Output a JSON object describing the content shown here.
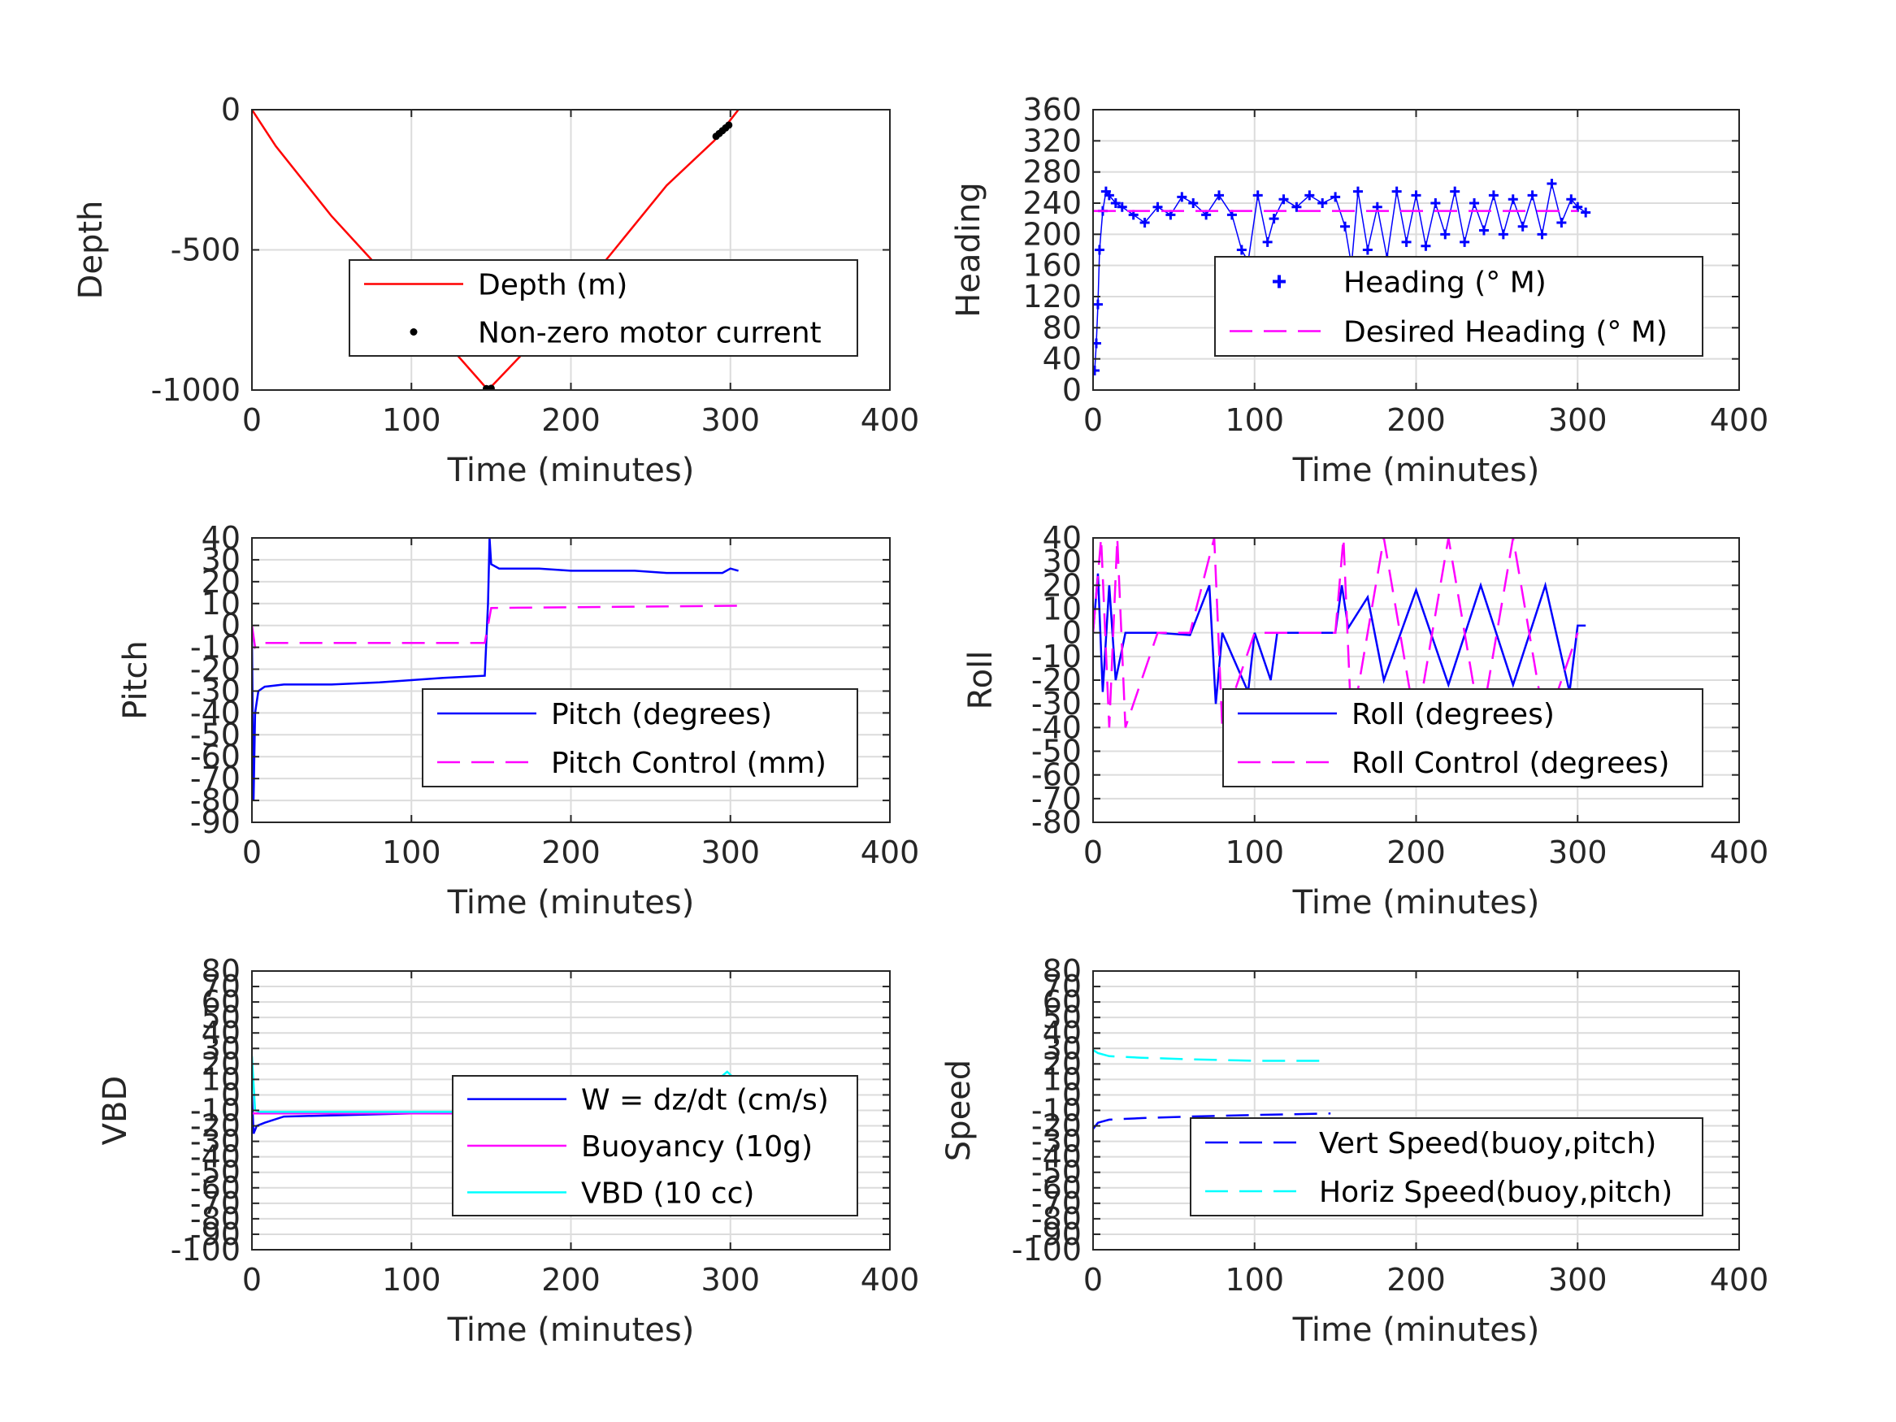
{
  "chart_data": [
    {
      "type": "line",
      "xlabel": "Time (minutes)",
      "ylabel": "Depth",
      "xlim": [
        0,
        400
      ],
      "ylim": [
        -1000,
        0
      ],
      "xticks": [
        0,
        100,
        200,
        300,
        400
      ],
      "yticks": [
        -1000,
        -500,
        0
      ],
      "grid": true,
      "legend": "lower-right",
      "series": [
        {
          "name": "Depth (m)",
          "style": "line",
          "color": "#ff0000",
          "x": [
            0,
            15,
            50,
            100,
            148,
            200,
            260,
            290,
            305
          ],
          "y": [
            0,
            -130,
            -380,
            -690,
            -1000,
            -690,
            -270,
            -110,
            0
          ]
        },
        {
          "name": "Non-zero motor current",
          "style": "dot",
          "color": "#000000",
          "x": [
            147,
            148,
            149,
            150,
            291,
            293,
            295,
            297,
            299
          ],
          "y": [
            -995,
            -1000,
            -998,
            -994,
            -95,
            -85,
            -75,
            -65,
            -55
          ]
        }
      ]
    },
    {
      "type": "line",
      "xlabel": "Time (minutes)",
      "ylabel": "Heading",
      "xlim": [
        0,
        400
      ],
      "ylim": [
        0,
        360
      ],
      "xticks": [
        0,
        100,
        200,
        300,
        400
      ],
      "yticks": [
        0,
        40,
        80,
        120,
        160,
        200,
        240,
        280,
        320,
        360
      ],
      "grid": true,
      "legend": "top-right",
      "series": [
        {
          "name": "Heading (° M)",
          "style": "plus",
          "color": "#0000ff",
          "x": [
            1,
            2,
            3,
            4,
            6,
            8,
            10,
            14,
            18,
            25,
            32,
            40,
            48,
            55,
            62,
            70,
            78,
            86,
            92,
            96,
            102,
            108,
            112,
            118,
            126,
            134,
            142,
            150,
            156,
            160,
            164,
            170,
            176,
            182,
            188,
            194,
            200,
            206,
            212,
            218,
            224,
            230,
            236,
            242,
            248,
            254,
            260,
            266,
            272,
            278,
            284,
            290,
            296,
            300,
            305
          ],
          "y": [
            25,
            60,
            110,
            180,
            230,
            255,
            250,
            240,
            235,
            225,
            215,
            235,
            225,
            248,
            240,
            225,
            250,
            225,
            180,
            165,
            250,
            190,
            220,
            245,
            235,
            250,
            240,
            248,
            210,
            160,
            255,
            180,
            235,
            170,
            255,
            190,
            250,
            185,
            240,
            200,
            255,
            190,
            240,
            205,
            250,
            200,
            245,
            210,
            250,
            200,
            265,
            215,
            245,
            235,
            228
          ]
        },
        {
          "name": "Desired Heading (° M)",
          "style": "dash",
          "color": "#ff00ff",
          "x": [
            0,
            300
          ],
          "y": [
            230,
            230
          ]
        }
      ]
    },
    {
      "type": "line",
      "xlabel": "Time (minutes)",
      "ylabel": "Pitch",
      "xlim": [
        0,
        400
      ],
      "ylim": [
        -90,
        40
      ],
      "xticks": [
        0,
        100,
        200,
        300,
        400
      ],
      "yticks": [
        -90,
        -80,
        -70,
        -60,
        -50,
        -40,
        -30,
        -20,
        -10,
        0,
        10,
        20,
        30,
        40
      ],
      "grid": true,
      "legend": "lower-right",
      "series": [
        {
          "name": "Pitch (degrees)",
          "style": "line",
          "color": "#0000ff",
          "x": [
            0,
            1,
            2,
            4,
            8,
            20,
            50,
            80,
            100,
            120,
            146,
            148,
            149,
            150,
            155,
            180,
            200,
            220,
            240,
            260,
            280,
            295,
            300,
            305
          ],
          "y": [
            -5,
            -80,
            -40,
            -30,
            -28,
            -27,
            -27,
            -26,
            -25,
            -24,
            -23,
            10,
            40,
            28,
            26,
            26,
            25,
            25,
            25,
            24,
            24,
            24,
            26,
            25
          ]
        },
        {
          "name": "Pitch Control (mm)",
          "style": "dash",
          "color": "#ff00ff",
          "x": [
            0,
            2,
            5,
            146,
            148,
            150,
            305
          ],
          "y": [
            0,
            -10,
            -8,
            -8,
            0,
            8,
            9
          ]
        }
      ]
    },
    {
      "type": "line",
      "xlabel": "Time (minutes)",
      "ylabel": "Roll",
      "xlim": [
        0,
        400
      ],
      "ylim": [
        -80,
        40
      ],
      "xticks": [
        0,
        100,
        200,
        300,
        400
      ],
      "yticks": [
        -80,
        -70,
        -60,
        -50,
        -40,
        -30,
        -20,
        -10,
        0,
        10,
        20,
        30,
        40
      ],
      "grid": true,
      "legend": "lower-right",
      "series": [
        {
          "name": "Roll (degrees)",
          "style": "line",
          "color": "#0000ff",
          "x": [
            0,
            3,
            6,
            10,
            14,
            20,
            40,
            60,
            72,
            76,
            80,
            96,
            100,
            110,
            114,
            120,
            150,
            154,
            158,
            170,
            180,
            200,
            220,
            240,
            260,
            280,
            295,
            300,
            305
          ],
          "y": [
            0,
            25,
            -25,
            20,
            -20,
            0,
            0,
            -1,
            20,
            -30,
            0,
            -25,
            0,
            -20,
            0,
            0,
            0,
            20,
            2,
            15,
            -20,
            18,
            -22,
            20,
            -22,
            20,
            -25,
            3,
            3
          ]
        },
        {
          "name": "Roll Control (degrees)",
          "style": "dash",
          "color": "#ff00ff",
          "x": [
            0,
            5,
            10,
            15,
            20,
            40,
            60,
            75,
            80,
            100,
            150,
            155,
            160,
            180,
            200,
            220,
            240,
            260,
            280,
            300
          ],
          "y": [
            0,
            40,
            -40,
            40,
            -40,
            0,
            0,
            40,
            -40,
            0,
            0,
            40,
            -40,
            40,
            -40,
            40,
            -40,
            40,
            -40,
            0
          ]
        }
      ]
    },
    {
      "type": "line",
      "xlabel": "Time (minutes)",
      "ylabel": "VBD",
      "xlim": [
        0,
        400
      ],
      "ylim": [
        -100,
        80
      ],
      "xticks": [
        0,
        100,
        200,
        300,
        400
      ],
      "yticks": [
        -100,
        -90,
        -80,
        -70,
        -60,
        -50,
        -40,
        -30,
        -20,
        -10,
        0,
        10,
        20,
        30,
        40,
        50,
        60,
        70,
        80
      ],
      "grid": true,
      "legend": "lower-right",
      "series": [
        {
          "name": "W = dz/dt (cm/s)",
          "style": "line",
          "color": "#0000ff",
          "x": [
            0,
            1,
            3,
            8,
            20,
            60,
            100,
            146,
            148,
            150,
            160,
            200,
            250,
            290,
            300,
            305
          ],
          "y": [
            0,
            -25,
            -20,
            -18,
            -14,
            -13,
            -12,
            -11,
            -5,
            12,
            11,
            10,
            10,
            9,
            12,
            10
          ]
        },
        {
          "name": "Buoyancy (10g)",
          "style": "line",
          "color": "#ff00ff",
          "x": [
            0,
            146,
            148,
            150,
            305
          ],
          "y": [
            -12,
            -12,
            0,
            8,
            8
          ]
        },
        {
          "name": "VBD (10 cc)",
          "style": "line",
          "color": "#00ffff",
          "x": [
            0,
            2,
            5,
            146,
            148,
            150,
            290,
            298,
            303
          ],
          "y": [
            25,
            -10,
            -11,
            -11,
            0,
            8,
            8,
            15,
            10
          ]
        }
      ]
    },
    {
      "type": "line",
      "xlabel": "Time (minutes)",
      "ylabel": "Speed",
      "xlim": [
        0,
        400
      ],
      "ylim": [
        -100,
        80
      ],
      "xticks": [
        0,
        100,
        200,
        300,
        400
      ],
      "yticks": [
        -100,
        -90,
        -80,
        -70,
        -60,
        -50,
        -40,
        -30,
        -20,
        -10,
        0,
        10,
        20,
        30,
        40,
        50,
        60,
        70,
        80
      ],
      "grid": true,
      "legend": "lower-right",
      "series": [
        {
          "name": "Vert Speed(buoy,pitch)",
          "style": "dash",
          "color": "#0000ff",
          "x": [
            0,
            3,
            10,
            30,
            60,
            100,
            147
          ],
          "y": [
            -22,
            -18,
            -16,
            -15,
            -14,
            -13,
            -12
          ]
        },
        {
          "name": "Horiz Speed(buoy,pitch)",
          "style": "dash",
          "color": "#00ffff",
          "x": [
            0,
            3,
            10,
            30,
            60,
            100,
            147
          ],
          "y": [
            29,
            27,
            25,
            24,
            23,
            22,
            22
          ]
        }
      ]
    }
  ]
}
